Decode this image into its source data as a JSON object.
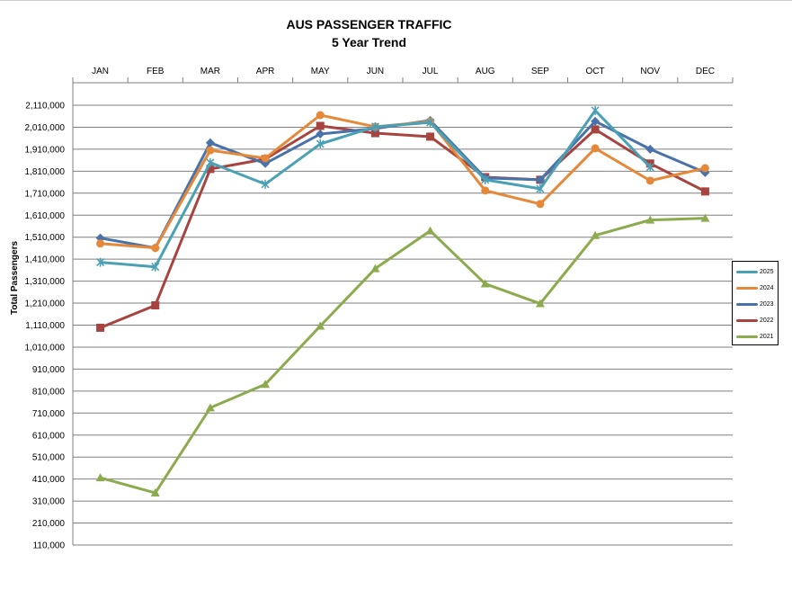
{
  "chart_data": {
    "type": "line",
    "title": "AUS PASSENGER TRAFFIC",
    "subtitle": "5 Year Trend",
    "xlabel": "",
    "ylabel": "Total Passengers",
    "categories": [
      "JAN",
      "FEB",
      "MAR",
      "APR",
      "MAY",
      "JUN",
      "JUL",
      "AUG",
      "SEP",
      "OCT",
      "NOV",
      "DEC"
    ],
    "ylim": [
      110000,
      2110000
    ],
    "yticks": [
      110000,
      210000,
      310000,
      410000,
      510000,
      610000,
      710000,
      810000,
      910000,
      1010000,
      1110000,
      1210000,
      1310000,
      1410000,
      1510000,
      1610000,
      1710000,
      1810000,
      1910000,
      2010000,
      2110000
    ],
    "ytick_labels": [
      "110,000",
      "210,000",
      "310,000",
      "410,000",
      "510,000",
      "610,000",
      "710,000",
      "810,000",
      "910,000",
      "1,010,000",
      "1,110,000",
      "1,210,000",
      "1,310,000",
      "1,410,000",
      "1,510,000",
      "1,610,000",
      "1,710,000",
      "1,810,000",
      "1,910,000",
      "2,010,000",
      "2,110,000"
    ],
    "grid": true,
    "legend_position": "right",
    "series": [
      {
        "name": "2025",
        "color": "#4aa0b5",
        "marker": "x",
        "values": [
          1396000,
          1375000,
          1849000,
          1751000,
          1934000,
          2012000,
          2032000,
          1771000,
          1730000,
          2086000,
          1828000,
          null
        ]
      },
      {
        "name": "2024",
        "color": "#e6883a",
        "marker": "circle",
        "values": [
          1481000,
          1461000,
          1905000,
          1869000,
          2065000,
          2012000,
          2036000,
          1722000,
          1661000,
          1914000,
          1767000,
          1824000
        ]
      },
      {
        "name": "2023",
        "color": "#4a72aa",
        "marker": "diamond",
        "values": [
          1506000,
          1461000,
          1939000,
          1845000,
          1979000,
          2004000,
          2041000,
          1779000,
          1771000,
          2037000,
          1910000,
          1804000
        ]
      },
      {
        "name": "2022",
        "color": "#a84440",
        "marker": "square",
        "values": [
          1098000,
          1200000,
          1820000,
          1865000,
          2016000,
          1983000,
          1967000,
          1783000,
          1771000,
          2000000,
          1845000,
          1718000
        ]
      },
      {
        "name": "2021",
        "color": "#8cab4e",
        "marker": "triangle",
        "values": [
          416000,
          347000,
          734000,
          841000,
          1106000,
          1367000,
          1539000,
          1298000,
          1208000,
          1518000,
          1588000,
          1596000
        ]
      }
    ]
  }
}
